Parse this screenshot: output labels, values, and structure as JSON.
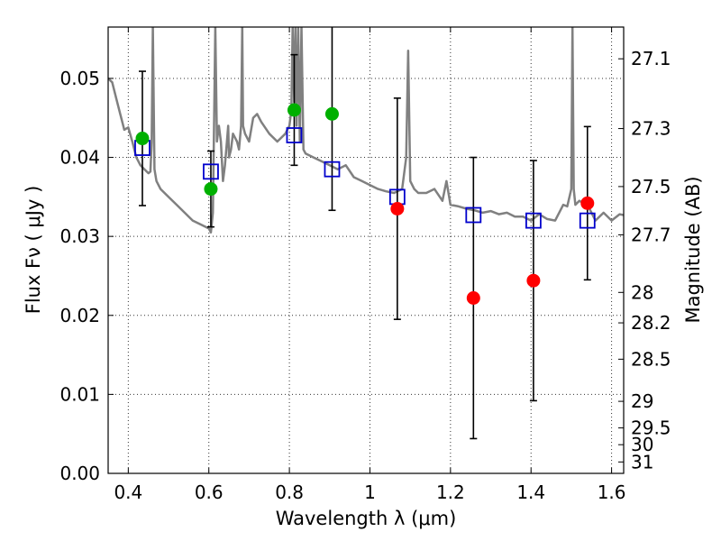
{
  "chart_data": {
    "type": "scatter",
    "xlabel": "Wavelength  λ (μm)",
    "ylabel": "Flux  Fν  ( μJy )",
    "ylabel_right": "Magnitude (AB)",
    "xlim": [
      0.35,
      1.63
    ],
    "ylim": [
      0.0,
      0.0565
    ],
    "grid": true,
    "x_ticks": [
      0.4,
      0.6,
      0.8,
      1.0,
      1.2,
      1.4,
      1.6
    ],
    "x_tick_labels": [
      "0.4",
      "0.6",
      "0.8",
      "1",
      "1.2",
      "1.4",
      "1.6"
    ],
    "y_ticks": [
      0.0,
      0.01,
      0.02,
      0.03,
      0.04,
      0.05
    ],
    "y_tick_labels": [
      "0.00",
      "0.01",
      "0.02",
      "0.03",
      "0.04",
      "0.05"
    ],
    "right_ticks": [
      27.1,
      27.3,
      27.5,
      27.7,
      28,
      28.2,
      28.5,
      29,
      29.5,
      30,
      31
    ],
    "right_tick_labels": [
      "27.1",
      "27.3",
      "27.5",
      "27.7",
      "28",
      "28.2",
      "28.5",
      "29",
      "29.5",
      "30",
      "31"
    ],
    "colors": {
      "model": "#808080",
      "observed_green": "#00b000",
      "observed_red": "#ff0000",
      "model_box": "#0000cc",
      "errorbar": "#000000",
      "grid": "#000000"
    },
    "series": [
      {
        "marker": "circle",
        "color": "#00b000",
        "x": [
          0.435,
          0.605,
          0.812,
          0.906
        ],
        "y": [
          0.0424,
          0.036,
          0.046,
          0.0455
        ],
        "yerr": [
          0.0085,
          0.0048,
          0.007,
          0.0122
        ]
      },
      {
        "marker": "circle",
        "color": "#ff0000",
        "x": [
          1.068,
          1.257,
          1.406,
          1.54
        ],
        "y": [
          0.0335,
          0.0222,
          0.0244,
          0.0342
        ],
        "yerr": [
          0.014,
          0.0178,
          0.0152,
          0.0097
        ]
      },
      {
        "marker": "open-square",
        "color": "#0000cc",
        "x": [
          0.435,
          0.605,
          0.812,
          0.906,
          1.068,
          1.257,
          1.406,
          1.54
        ],
        "y": [
          0.0412,
          0.0382,
          0.0428,
          0.0385,
          0.035,
          0.0327,
          0.032,
          0.032
        ]
      }
    ],
    "model_spectrum": {
      "color": "#808080",
      "x": [
        0.35,
        0.36,
        0.37,
        0.38,
        0.39,
        0.4,
        0.41,
        0.42,
        0.43,
        0.44,
        0.45,
        0.455,
        0.458,
        0.461,
        0.465,
        0.47,
        0.48,
        0.5,
        0.52,
        0.54,
        0.56,
        0.58,
        0.6,
        0.605,
        0.61,
        0.613,
        0.616,
        0.62,
        0.625,
        0.63,
        0.635,
        0.64,
        0.645,
        0.648,
        0.65,
        0.655,
        0.66,
        0.67,
        0.675,
        0.68,
        0.683,
        0.685,
        0.69,
        0.7,
        0.71,
        0.72,
        0.73,
        0.75,
        0.77,
        0.79,
        0.8,
        0.805,
        0.808,
        0.812,
        0.815,
        0.818,
        0.822,
        0.826,
        0.83,
        0.835,
        0.84,
        0.86,
        0.88,
        0.9,
        0.92,
        0.94,
        0.96,
        0.98,
        1.0,
        1.02,
        1.04,
        1.06,
        1.08,
        1.09,
        1.095,
        1.1,
        1.11,
        1.12,
        1.14,
        1.16,
        1.18,
        1.19,
        1.2,
        1.22,
        1.24,
        1.26,
        1.28,
        1.3,
        1.32,
        1.34,
        1.36,
        1.38,
        1.4,
        1.42,
        1.44,
        1.46,
        1.48,
        1.49,
        1.5,
        1.503,
        1.506,
        1.51,
        1.52,
        1.54,
        1.56,
        1.58,
        1.6,
        1.62,
        1.63
      ],
      "y": [
        0.05,
        0.0495,
        0.0475,
        0.0455,
        0.0435,
        0.0438,
        0.042,
        0.04,
        0.039,
        0.0385,
        0.038,
        0.0382,
        0.042,
        0.0565,
        0.0385,
        0.037,
        0.036,
        0.035,
        0.034,
        0.033,
        0.032,
        0.0315,
        0.031,
        0.0305,
        0.033,
        0.044,
        0.0565,
        0.042,
        0.044,
        0.042,
        0.037,
        0.039,
        0.042,
        0.044,
        0.04,
        0.041,
        0.043,
        0.042,
        0.041,
        0.044,
        0.0565,
        0.044,
        0.043,
        0.042,
        0.045,
        0.0455,
        0.0445,
        0.043,
        0.042,
        0.043,
        0.044,
        0.046,
        0.0565,
        0.047,
        0.0565,
        0.044,
        0.0565,
        0.042,
        0.0565,
        0.041,
        0.0405,
        0.04,
        0.0395,
        0.039,
        0.0385,
        0.039,
        0.0375,
        0.037,
        0.0365,
        0.036,
        0.0357,
        0.0355,
        0.036,
        0.04,
        0.0535,
        0.037,
        0.036,
        0.0355,
        0.0355,
        0.036,
        0.0345,
        0.037,
        0.034,
        0.0338,
        0.0335,
        0.0333,
        0.033,
        0.0332,
        0.0328,
        0.033,
        0.0325,
        0.0325,
        0.032,
        0.0328,
        0.0322,
        0.032,
        0.034,
        0.0338,
        0.036,
        0.0565,
        0.036,
        0.034,
        0.0345,
        0.034,
        0.032,
        0.033,
        0.032,
        0.0328,
        0.0327
      ]
    }
  }
}
